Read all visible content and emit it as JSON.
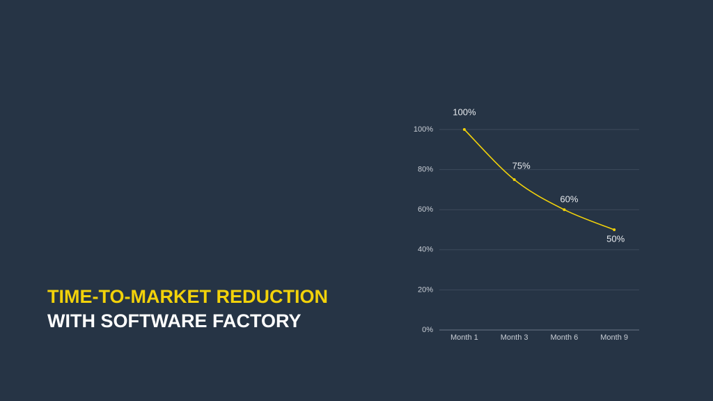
{
  "chart_data": {
    "type": "line",
    "title": "TIME-TO-MARKET REDUCTION",
    "subtitle": "WITH SOFTWARE FACTORY",
    "categories": [
      "Month 1",
      "Month 3",
      "Month 6",
      "Month 9"
    ],
    "values": [
      100,
      75,
      60,
      50
    ],
    "value_labels": [
      "100%",
      "75%",
      "60%",
      "50%"
    ],
    "color": "#f2d20a",
    "ylim": [
      0,
      100
    ],
    "yticks": [
      {
        "value": 0,
        "label": "0%"
      },
      {
        "value": 20,
        "label": "20%"
      },
      {
        "value": 40,
        "label": "40%"
      },
      {
        "value": 60,
        "label": "60%"
      },
      {
        "value": 80,
        "label": "80%"
      },
      {
        "value": 100,
        "label": "100%"
      }
    ],
    "grid": true
  }
}
